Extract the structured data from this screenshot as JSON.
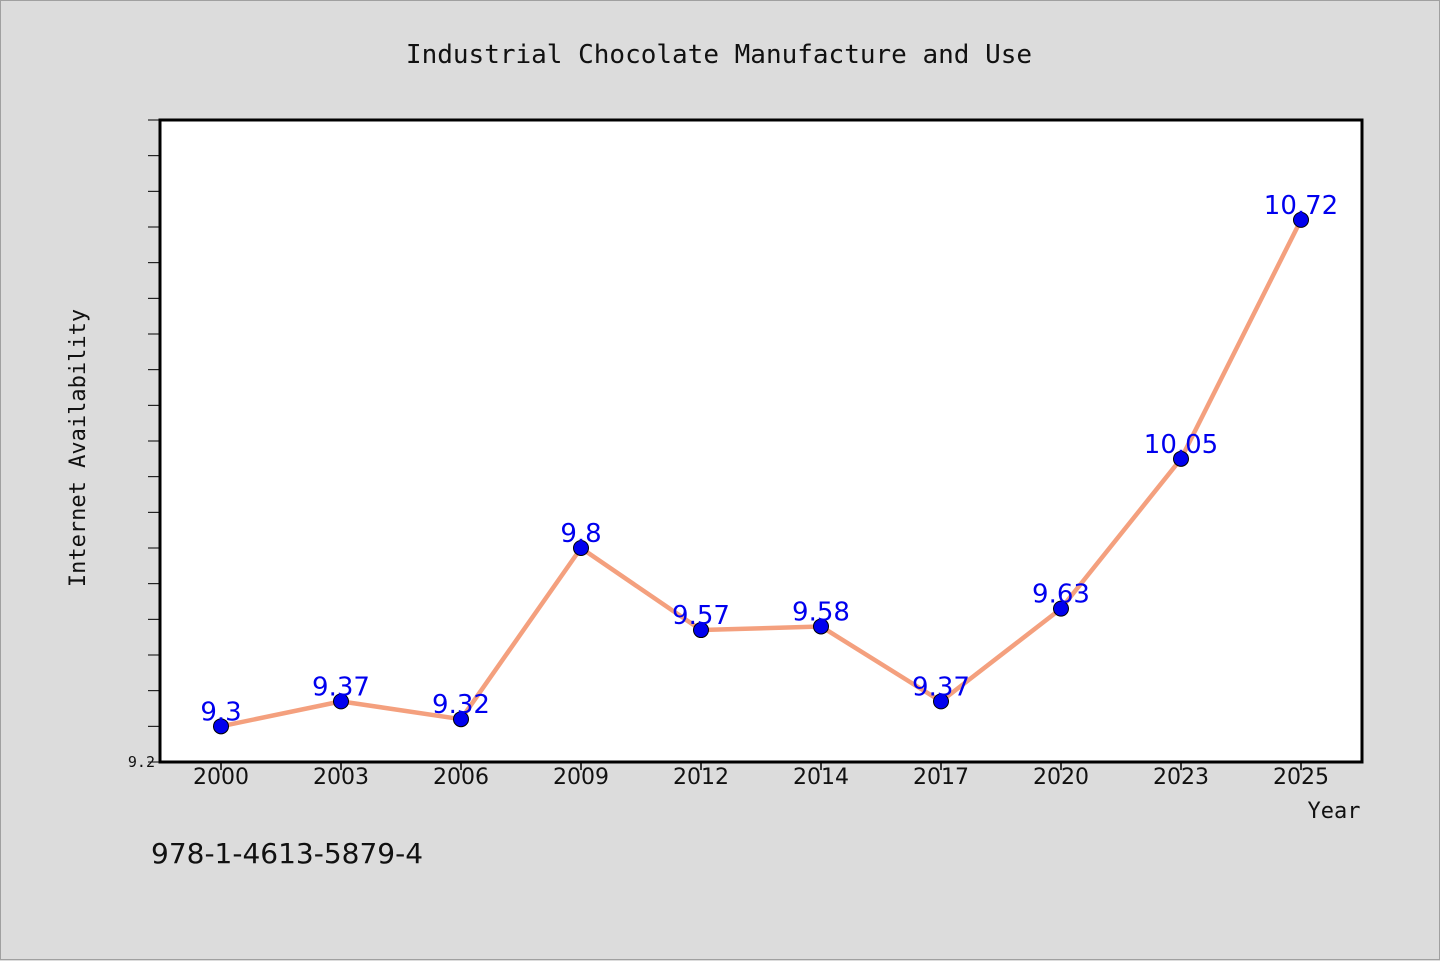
{
  "chart_data": {
    "type": "line",
    "title": "Industrial Chocolate Manufacture and Use",
    "xlabel": "Year",
    "ylabel": "Internet Availability",
    "categories": [
      "2000",
      "2003",
      "2006",
      "2009",
      "2012",
      "2014",
      "2017",
      "2020",
      "2023",
      "2025"
    ],
    "values": [
      9.3,
      9.37,
      9.32,
      9.8,
      9.57,
      9.58,
      9.37,
      9.63,
      10.05,
      10.72
    ],
    "data_labels": [
      "9.3",
      "9.37",
      "9.32",
      "9.8",
      "9.57",
      "9.58",
      "9.37",
      "9.63",
      "10.05",
      "10.72"
    ],
    "ytick_labels": [
      "9.2"
    ],
    "ylim": [
      9.2,
      11.0
    ],
    "grid": false,
    "line_color": "#f4a07e",
    "marker_color": "#0000ee",
    "label_color": "#0000ee"
  },
  "footer": {
    "isbn": "978-1-4613-5879-4"
  }
}
